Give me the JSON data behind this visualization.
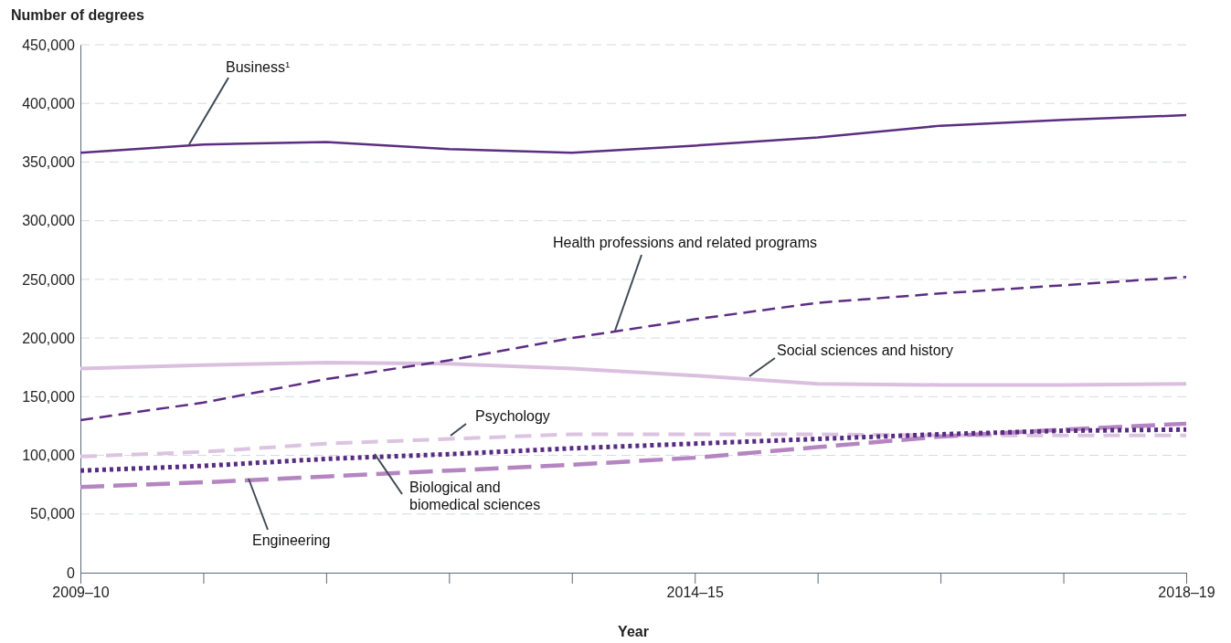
{
  "chart_data": {
    "type": "line",
    "ylabel": "Number of degrees",
    "xlabel": "Year",
    "categories": [
      "2009–10",
      null,
      null,
      null,
      null,
      "2014–15",
      null,
      null,
      null,
      "2018–19"
    ],
    "ylim": [
      0,
      450000
    ],
    "yticks": [
      {
        "value": 0,
        "label": "0"
      },
      {
        "value": 50000,
        "label": "50,000"
      },
      {
        "value": 100000,
        "label": "100,000"
      },
      {
        "value": 150000,
        "label": "150,000"
      },
      {
        "value": 200000,
        "label": "200,000"
      },
      {
        "value": 250000,
        "label": "250,000"
      },
      {
        "value": 300000,
        "label": "300,000"
      },
      {
        "value": 350000,
        "label": "350,000"
      },
      {
        "value": 400000,
        "label": "400,000"
      },
      {
        "value": 450000,
        "label": "450,000"
      }
    ],
    "grid": "y",
    "marker": "none",
    "series": [
      {
        "name": "Business$^{1}$",
        "color": "#5c2d82",
        "line_style": "solid",
        "values": [
          358000,
          365000,
          367000,
          361000,
          358000,
          364000,
          371000,
          381000,
          386000,
          390000
        ]
      },
      {
        "name": "Health professions and related programs",
        "color": "#5c2d82",
        "line_style": "dashed",
        "values": [
          130000,
          145000,
          165000,
          181000,
          200000,
          216000,
          230000,
          238000,
          245000,
          252000
        ]
      },
      {
        "name": "Social sciences and history",
        "color": "#dbbfdf",
        "line_style": "solid",
        "values": [
          174000,
          177000,
          179000,
          178000,
          174000,
          168000,
          161000,
          160000,
          160000,
          161000
        ]
      },
      {
        "name": "Psychology",
        "color": "#dcc3e1",
        "line_style": "dashed",
        "values": [
          99000,
          103000,
          110000,
          114000,
          118000,
          118000,
          118000,
          117000,
          117000,
          117000
        ]
      },
      {
        "name": "Biological and biomedical sciences",
        "color": "#582b82",
        "line_style": "dotted",
        "values": [
          87000,
          91000,
          97000,
          101000,
          106000,
          110000,
          114000,
          118000,
          121000,
          122000
        ]
      },
      {
        "name": "Engineering",
        "color": "#b585c2",
        "line_style": "dashed",
        "values": [
          73000,
          77000,
          82000,
          87000,
          92000,
          98000,
          107000,
          116000,
          122000,
          127000
        ]
      }
    ]
  }
}
